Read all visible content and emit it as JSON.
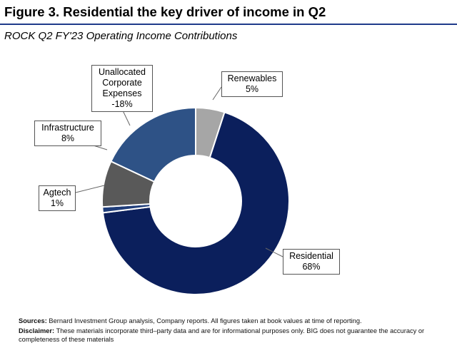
{
  "figure": {
    "title": "Figure 3. Residential the key driver of income in Q2",
    "subtitle": "ROCK Q2 FY'23 Operating Income Contributions"
  },
  "chart_data": {
    "type": "pie",
    "style": "donut",
    "title": "ROCK Q2 FY'23 Operating Income Contributions",
    "slices": [
      {
        "name": "Renewables",
        "label": "5%",
        "value": 5,
        "color": "#a6a6a6"
      },
      {
        "name": "Residential",
        "label": "68%",
        "value": 68,
        "color": "#0b1f5c"
      },
      {
        "name": "Agtech",
        "label": "1%",
        "value": 1,
        "color": "#1f3d7a"
      },
      {
        "name": "Infrastructure",
        "label": "8%",
        "value": 8,
        "color": "#595959"
      },
      {
        "name": "Unallocated Corporate Expenses",
        "label": "-18%",
        "value": -18,
        "color": "#2e5286"
      }
    ],
    "legend": "none"
  },
  "callouts": {
    "renewables": {
      "lines": [
        "Renewables",
        "5%"
      ]
    },
    "residential": {
      "lines": [
        "Residential",
        "68%"
      ]
    },
    "agtech": {
      "lines": [
        "Agtech",
        "1%"
      ]
    },
    "infrastructure": {
      "lines": [
        "Infrastructure",
        "8%"
      ]
    },
    "unallocated": {
      "lines": [
        "Unallocated",
        "Corporate",
        "Expenses",
        "-18%"
      ]
    }
  },
  "footer": {
    "sources_label": "Sources:",
    "sources_text": "Bernard Investment Group analysis, Company reports. All figures taken at book values at time of reporting.",
    "disclaimer_label": "Disclaimer:",
    "disclaimer_text": "These materials incorporate third–party data and are for informational purposes only. BIG does not guarantee the accuracy or completeness of these materials"
  }
}
